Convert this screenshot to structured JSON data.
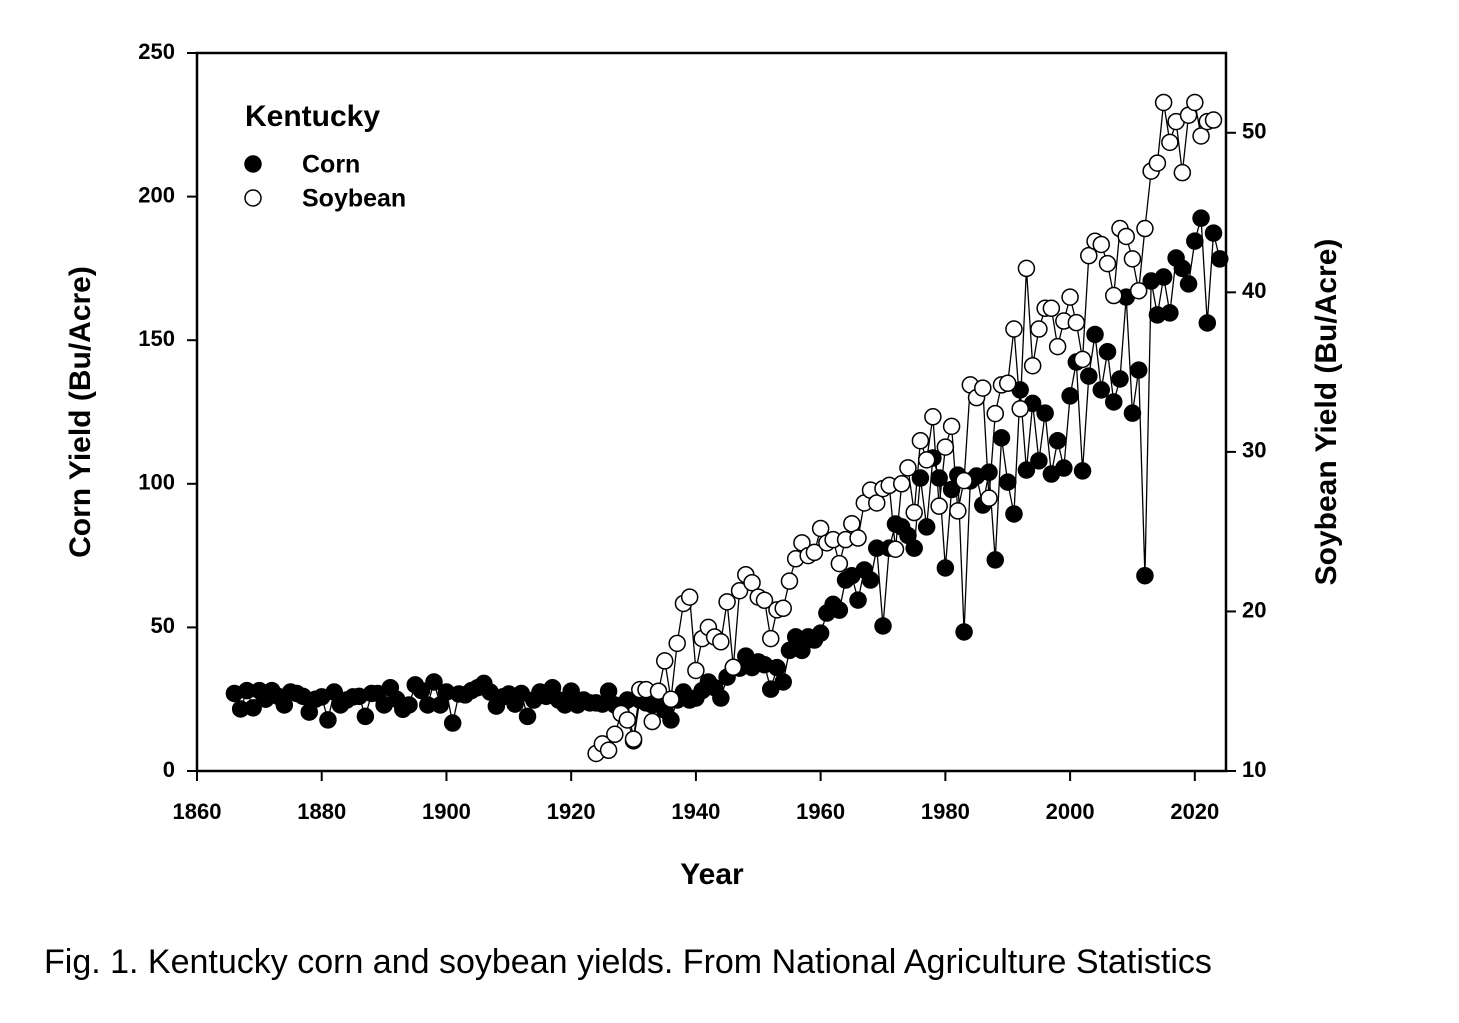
{
  "chart_data": {
    "type": "scatter-line",
    "legend_title": "Kentucky",
    "x_label": "Year",
    "y_label": "Corn Yield (Bu/Acre)",
    "y2_label": "Soybean Yield (Bu/Acre)",
    "caption": "Fig. 1. Kentucky corn and soybean yields. From National Agriculture Statistics",
    "legend": "upper left",
    "xlim": [
      1860,
      2025
    ],
    "xticks": [
      1860,
      1880,
      1900,
      1920,
      1940,
      1960,
      1980,
      2000,
      2020
    ],
    "ylim": [
      0,
      250
    ],
    "yticks": [
      0,
      50,
      100,
      150,
      200,
      250
    ],
    "y2lim": [
      10,
      55
    ],
    "y2ticks": [
      10,
      20,
      30,
      40,
      50
    ],
    "series": [
      {
        "name": "Corn",
        "color": "#000000",
        "marker_fill": "#000000",
        "x": [
          1866,
          1867,
          1868,
          1869,
          1870,
          1871,
          1872,
          1873,
          1874,
          1875,
          1876,
          1877,
          1878,
          1879,
          1880,
          1881,
          1882,
          1883,
          1884,
          1885,
          1886,
          1887,
          1888,
          1889,
          1890,
          1891,
          1892,
          1893,
          1894,
          1895,
          1896,
          1897,
          1898,
          1899,
          1900,
          1901,
          1902,
          1903,
          1904,
          1905,
          1906,
          1907,
          1908,
          1909,
          1910,
          1911,
          1912,
          1913,
          1914,
          1915,
          1916,
          1917,
          1918,
          1919,
          1920,
          1921,
          1922,
          1923,
          1924,
          1925,
          1926,
          1927,
          1928,
          1929,
          1930,
          1931,
          1932,
          1933,
          1934,
          1935,
          1936,
          1937,
          1938,
          1939,
          1940,
          1941,
          1942,
          1943,
          1944,
          1945,
          1946,
          1947,
          1948,
          1949,
          1950,
          1951,
          1952,
          1953,
          1954,
          1955,
          1956,
          1957,
          1958,
          1959,
          1960,
          1961,
          1962,
          1963,
          1964,
          1965,
          1966,
          1967,
          1968,
          1969,
          1970,
          1971,
          1972,
          1973,
          1974,
          1975,
          1976,
          1977,
          1978,
          1979,
          1980,
          1981,
          1982,
          1983,
          1984,
          1985,
          1986,
          1987,
          1988,
          1989,
          1990,
          1991,
          1992,
          1993,
          1994,
          1995,
          1996,
          1997,
          1998,
          1999,
          2000,
          2001,
          2002,
          2003,
          2004,
          2005,
          2006,
          2007,
          2008,
          2009,
          2010,
          2011,
          2012,
          2013,
          2014,
          2015,
          2016,
          2017,
          2018,
          2019,
          2020,
          2021,
          2022,
          2023,
          2024
        ],
        "values": [
          27,
          21.6,
          28,
          22,
          28,
          25,
          28,
          26,
          23,
          27.5,
          27,
          26,
          20.5,
          25,
          25.8,
          17.8,
          27.5,
          23,
          24.7,
          25.8,
          26,
          19,
          27,
          27,
          23,
          29,
          25,
          21.5,
          23,
          30,
          28,
          23,
          31,
          23,
          27.5,
          16.7,
          26.8,
          26.5,
          28,
          29,
          30.5,
          27.5,
          22.6,
          25.8,
          26.8,
          23.3,
          27,
          19,
          24.7,
          27.5,
          26,
          29,
          24.7,
          23,
          27.8,
          23,
          24.7,
          23.7,
          23.7,
          23.3,
          27.8,
          23,
          22.6,
          24.7,
          10.5,
          24.7,
          23.7,
          23,
          23.7,
          21.2,
          17.8,
          24.7,
          27.5,
          24.7,
          25.4,
          28,
          31,
          29,
          25.4,
          32.7,
          36,
          35.8,
          40,
          36,
          38,
          37,
          28.5,
          36,
          31,
          42,
          46.7,
          42,
          46.7,
          45.6,
          48,
          55,
          58,
          56,
          66.5,
          68,
          59.5,
          70,
          66.5,
          77.6,
          50.5,
          77.6,
          86,
          85,
          82,
          77.6,
          102,
          85,
          109,
          102,
          70.7,
          98,
          103,
          48.4,
          101,
          102.7,
          92.6,
          104,
          73.5,
          116,
          100.6,
          89.5,
          132.7,
          104.8,
          128,
          108,
          124.6,
          103.4,
          115,
          105.5,
          130.6,
          142.4,
          104.5,
          137.5,
          152,
          132.7,
          146,
          128.5,
          136.5,
          165,
          124.6,
          139.6,
          68,
          170.6,
          158.8,
          172,
          159.5,
          178.6,
          175,
          169.6,
          184.5,
          192.5,
          156,
          187.3,
          178.3
        ]
      },
      {
        "name": "Soybean",
        "color": "#000000",
        "marker_fill": "#ffffff",
        "axis": "y2",
        "x": [
          1924,
          1925,
          1926,
          1927,
          1928,
          1929,
          1930,
          1931,
          1932,
          1933,
          1934,
          1935,
          1936,
          1937,
          1938,
          1939,
          1940,
          1941,
          1942,
          1943,
          1944,
          1945,
          1946,
          1947,
          1948,
          1949,
          1950,
          1951,
          1952,
          1953,
          1954,
          1955,
          1956,
          1957,
          1958,
          1959,
          1960,
          1961,
          1962,
          1963,
          1964,
          1965,
          1966,
          1967,
          1968,
          1969,
          1970,
          1971,
          1972,
          1973,
          1974,
          1975,
          1976,
          1977,
          1978,
          1979,
          1980,
          1981,
          1982,
          1983,
          1984,
          1985,
          1986,
          1987,
          1988,
          1989,
          1990,
          1991,
          1992,
          1993,
          1994,
          1995,
          1996,
          1997,
          1998,
          1999,
          2000,
          2001,
          2002,
          2003,
          2004,
          2005,
          2006,
          2007,
          2008,
          2009,
          2010,
          2011,
          2012,
          2013,
          2014,
          2015,
          2016,
          2017,
          2018,
          2019,
          2020,
          2021,
          2022,
          2023
        ],
        "values": [
          11.1,
          11.7,
          11.3,
          12.3,
          13.6,
          13.2,
          12.0,
          15.1,
          15.1,
          13.1,
          15.0,
          16.9,
          14.5,
          18.0,
          20.5,
          20.9,
          16.3,
          18.3,
          19.0,
          18.4,
          18.1,
          20.6,
          16.5,
          21.3,
          22.3,
          21.8,
          20.9,
          20.7,
          18.3,
          20.1,
          20.2,
          21.9,
          23.3,
          24.3,
          23.5,
          23.7,
          25.2,
          24.3,
          24.5,
          23.0,
          24.5,
          25.5,
          24.6,
          26.8,
          27.6,
          26.8,
          27.7,
          27.9,
          23.9,
          28.0,
          29.0,
          26.2,
          30.7,
          29.5,
          32.2,
          26.6,
          30.3,
          31.6,
          26.3,
          28.2,
          34.2,
          33.4,
          34.0,
          27.1,
          32.4,
          34.2,
          34.3,
          37.7,
          32.7,
          41.5,
          35.4,
          37.7,
          39.0,
          39.0,
          36.6,
          38.2,
          39.7,
          38.1,
          35.8,
          42.3,
          43.2,
          43.0,
          41.8,
          39.8,
          44.0,
          43.5,
          42.1,
          40.1,
          44.0,
          47.6,
          48.1,
          51.9,
          49.4,
          50.7,
          47.5,
          51.1,
          51.9,
          49.8,
          50.7,
          50.8
        ]
      }
    ]
  }
}
